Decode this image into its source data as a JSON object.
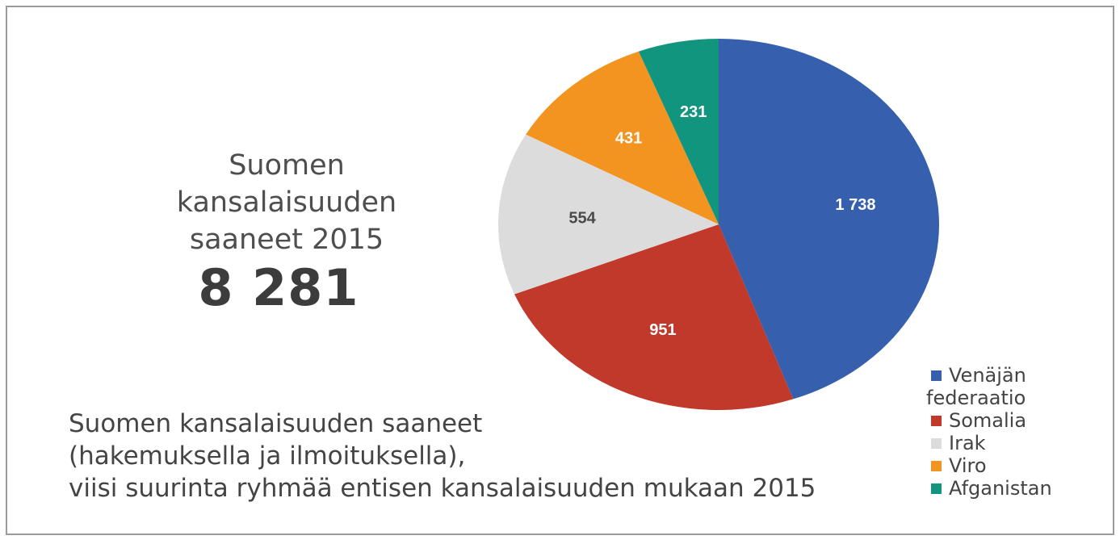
{
  "headline": {
    "lines": [
      "Suomen",
      "kansalaisuuden",
      "saaneet 2015"
    ],
    "total": "8 281"
  },
  "caption": {
    "lines": [
      "Suomen kansalaisuuden saaneet",
      "(hakemuksella ja ilmoituksella),",
      "viisi suurinta ryhmää entisen kansalaisuuden mukaan 2015"
    ]
  },
  "chart_data": {
    "type": "pie",
    "slices": [
      {
        "label": "Venäjän federaatio",
        "value": 1738,
        "display": "1 738",
        "color": "#3660ad",
        "label_color": "#ffffff"
      },
      {
        "label": "Somalia",
        "value": 951,
        "display": "951",
        "color": "#c0392b",
        "label_color": "#ffffff"
      },
      {
        "label": "Irak",
        "value": 554,
        "display": "554",
        "color": "#dcdcdc",
        "label_color": "#4a4a4a"
      },
      {
        "label": "Viro",
        "value": 431,
        "display": "431",
        "color": "#f39420",
        "label_color": "#ffffff"
      },
      {
        "label": "Afganistan",
        "value": 231,
        "display": "231",
        "color": "#12957f",
        "label_color": "#ffffff"
      }
    ],
    "start": "12 o'clock",
    "direction": "clockwise",
    "legend": {
      "position": "bottom-right",
      "lines": [
        [
          "Venäjän",
          "federaatio"
        ],
        [
          "Somalia"
        ],
        [
          "Irak"
        ],
        [
          "Viro"
        ],
        [
          "Afganistan"
        ]
      ]
    }
  }
}
